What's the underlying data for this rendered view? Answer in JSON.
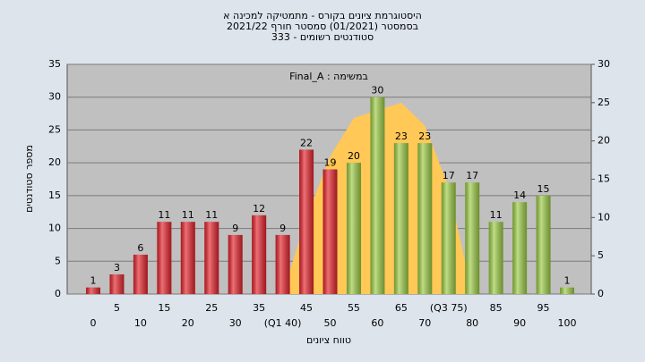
{
  "chart_data": {
    "type": "bar",
    "title": [
      "היסטוגרמת ציונים בקורס - מתמטיקה למכינה א",
      "בסמסטר  (01/2021)  סמסטר חורף 2021/22",
      "סטודנטים רשומים - 333"
    ],
    "annotation": "Final_A : במשימה",
    "y_label": "מספר סטודנטים",
    "x_label": "טווח ציונים",
    "categories": [
      "0",
      "5",
      "10",
      "15",
      "20",
      "25",
      "30",
      "35",
      "(Q1 40)",
      "45",
      "50",
      "55",
      "60",
      "65",
      "70",
      "(Q3 75)",
      "80",
      "85",
      "90",
      "95",
      "100"
    ],
    "values": [
      1,
      3,
      6,
      11,
      11,
      11,
      9,
      12,
      9,
      22,
      19,
      20,
      30,
      23,
      23,
      17,
      17,
      11,
      14,
      15,
      1
    ],
    "colors": [
      "#e3232b",
      "#e3232b",
      "#e3232b",
      "#e3232b",
      "#e3232b",
      "#e3232b",
      "#e3232b",
      "#e3232b",
      "#e3232b",
      "#e3232b",
      "#e3232b",
      "#9ccb45",
      "#9ccb45",
      "#9ccb45",
      "#9ccb45",
      "#9ccb45",
      "#9ccb45",
      "#9ccb45",
      "#9ccb45",
      "#9ccb45",
      "#9ccb45"
    ],
    "area": {
      "color": "#ffc857",
      "axis": "y2",
      "values": [
        null,
        null,
        null,
        null,
        null,
        null,
        null,
        null,
        0,
        10,
        18,
        23,
        24,
        25,
        22,
        14,
        0,
        null,
        null,
        null,
        null
      ]
    },
    "ylim": [
      0,
      35
    ],
    "yticks": [
      0,
      5,
      10,
      15,
      20,
      25,
      30,
      35
    ],
    "y2lim": [
      0,
      30
    ],
    "y2ticks": [
      0,
      5,
      10,
      15,
      20,
      25,
      30
    ],
    "grid": true
  }
}
